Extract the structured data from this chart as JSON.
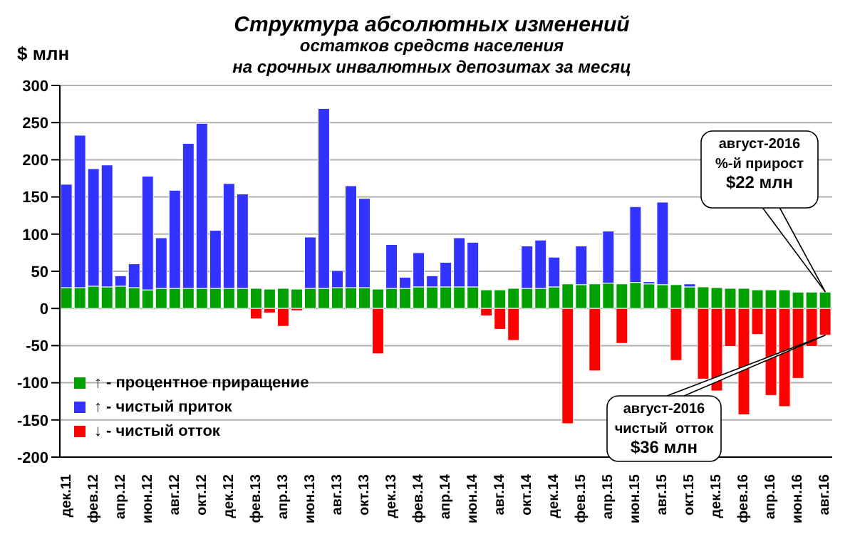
{
  "chart_data": {
    "type": "bar",
    "stacked": true,
    "title": "Структура абсолютных изменений",
    "subtitle": "остатков средств населения\nна срочных инвалютных депозитах за месяц",
    "ylabel": "$ млн",
    "categories": [
      "дек.11",
      null,
      "фев.12",
      null,
      "апр.12",
      null,
      "июн.12",
      null,
      "авг.12",
      null,
      "окт.12",
      null,
      "дек.12",
      null,
      "фев.13",
      null,
      "апр.13",
      null,
      "июн.13",
      null,
      "авг.13",
      null,
      "окт.13",
      null,
      "дек.13",
      null,
      "фев.14",
      null,
      "апр.14",
      null,
      "июн.14",
      null,
      "авг.14",
      null,
      "окт.14",
      null,
      "дек.14",
      null,
      "фев.15",
      null,
      "апр.15",
      null,
      "июн.15",
      null,
      "авг.15",
      null,
      "окт.15",
      null,
      "дек.15",
      null,
      "фев.16",
      null,
      "апр.16",
      null,
      "июн.16",
      null,
      "авг.16"
    ],
    "series": [
      {
        "name": "↑ - процентное приращение",
        "color": "#00a000",
        "values": [
          28,
          28,
          30,
          29,
          30,
          28,
          25,
          27,
          27,
          27,
          27,
          27,
          27,
          27,
          27,
          26,
          27,
          26,
          27,
          27,
          28,
          28,
          28,
          26,
          27,
          27,
          29,
          29,
          29,
          29,
          29,
          25,
          25,
          27,
          27,
          27,
          29,
          33,
          32,
          33,
          34,
          33,
          35,
          33,
          32,
          32,
          29,
          29,
          28,
          27,
          27,
          25,
          25,
          25,
          22,
          22,
          22
        ]
      },
      {
        "name": "↑ - чистый приток",
        "color": "#3333ff",
        "values": [
          139,
          205,
          158,
          164,
          14,
          32,
          153,
          68,
          132,
          195,
          222,
          78,
          141,
          127,
          null,
          null,
          null,
          null,
          69,
          242,
          23,
          137,
          120,
          null,
          59,
          15,
          46,
          15,
          33,
          66,
          60,
          null,
          null,
          null,
          57,
          65,
          40,
          null,
          52,
          null,
          70,
          null,
          102,
          3,
          111,
          null,
          4,
          null,
          null,
          null,
          null,
          null,
          null,
          null,
          null,
          null,
          null
        ]
      },
      {
        "name": "↓ - чистый отток",
        "color": "#ff0000",
        "values": [
          null,
          null,
          null,
          null,
          null,
          null,
          null,
          null,
          null,
          null,
          null,
          null,
          null,
          null,
          -14,
          -6,
          -24,
          -3,
          null,
          null,
          null,
          null,
          null,
          -61,
          null,
          null,
          null,
          null,
          null,
          null,
          null,
          -10,
          -28,
          -43,
          null,
          null,
          null,
          -155,
          null,
          -84,
          null,
          -47,
          null,
          null,
          null,
          -70,
          null,
          -95,
          -111,
          -51,
          -143,
          -35,
          -117,
          -132,
          -94,
          -51,
          -36
        ]
      }
    ],
    "ylim": [
      -200,
      300
    ],
    "yticks": [
      -200,
      -150,
      -100,
      -50,
      0,
      50,
      100,
      150,
      200,
      250,
      300
    ],
    "grid": "y",
    "legend": "bottom left",
    "annotations": [
      "август-2016\n%-й прирост\n$22 млн",
      {
        "text": "август-2016\nчистый  отток\n$36 млн",
        "x": "авг.16",
        "y": -36
      }
    ]
  }
}
